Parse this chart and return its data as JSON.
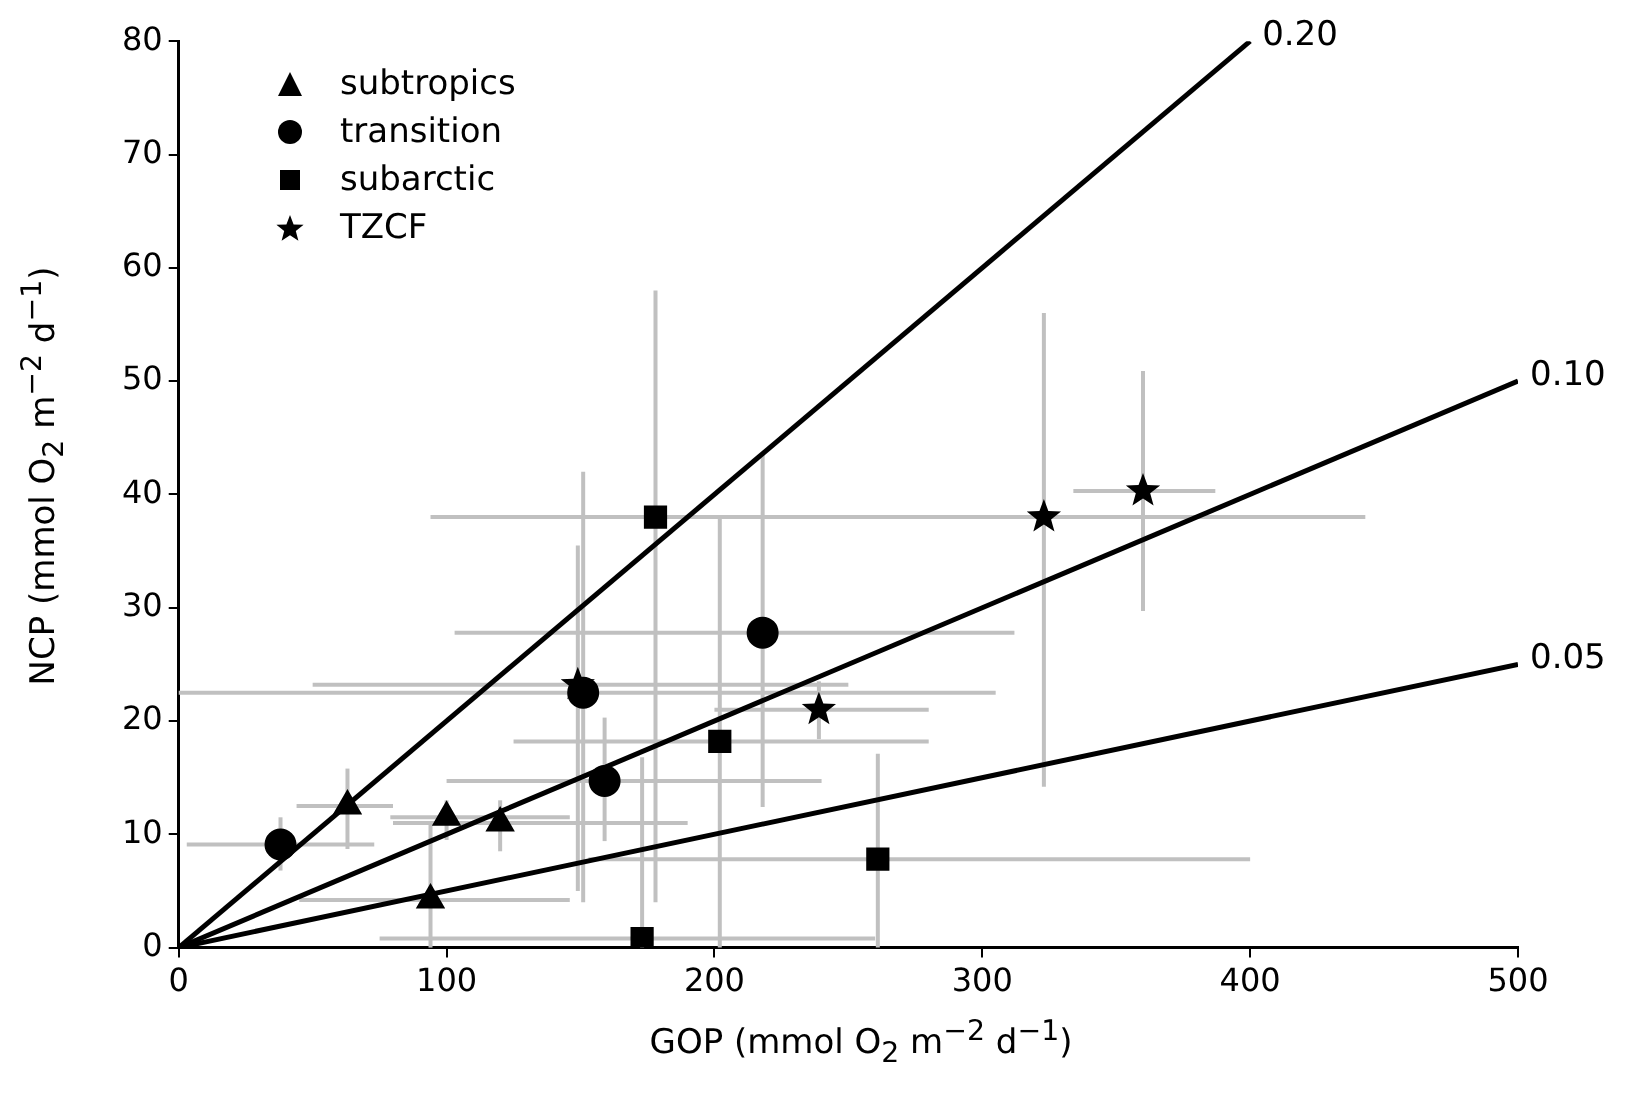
{
  "chart_data": {
    "type": "scatter",
    "xlabel": "GOP (mmol O$_{2}$ m$^{−2}$ d$^{−1}$)",
    "ylabel": "NCP (mmol O$_{2}$ m$^{−2}$ d$^{−1}$)",
    "xlim": [
      0,
      500
    ],
    "ylim": [
      0,
      80
    ],
    "xticks": [
      0,
      100,
      200,
      300,
      400,
      500
    ],
    "yticks": [
      0,
      10,
      20,
      30,
      40,
      50,
      60,
      70,
      80
    ],
    "grid": false,
    "legend": "top left",
    "series": [
      {
        "name": "subtropics",
        "color": "#000000",
        "marker": "triangle",
        "x": [
          63,
          100,
          120,
          94
        ],
        "values": [
          12.5,
          11.5,
          11,
          4.2
        ],
        "errors": [
          [
            8.7,
            15.8
          ],
          [
            9.5,
            13
          ],
          [
            8.5,
            13
          ],
          [
            0,
            11
          ]
        ],
        "xerrors": [
          [
            44,
            80
          ],
          [
            79,
            146
          ],
          [
            80,
            190
          ],
          [
            45,
            146
          ]
        ]
      },
      {
        "name": "transition",
        "color": "#000000",
        "marker": "circle",
        "x": [
          38,
          151,
          159,
          218
        ],
        "values": [
          9.1,
          22.5,
          14.7,
          27.8
        ],
        "errors": [
          [
            6.8,
            11.5
          ],
          [
            4,
            42
          ],
          [
            9.4,
            20.3
          ],
          [
            12.4,
            43.5
          ]
        ],
        "xerrors": [
          [
            3,
            73
          ],
          [
            0,
            305
          ],
          [
            100,
            240
          ],
          [
            103,
            312
          ]
        ]
      },
      {
        "name": "subarctic",
        "color": "#000000",
        "marker": "square",
        "x": [
          178,
          202,
          173,
          261
        ],
        "values": [
          38,
          18.2,
          0.8,
          7.8
        ],
        "errors": [
          [
            4,
            58
          ],
          [
            0,
            38
          ],
          [
            0,
            16.8
          ],
          [
            0,
            17.1
          ]
        ],
        "xerrors": [
          [
            94,
            295
          ],
          [
            125,
            280
          ],
          [
            75,
            260
          ],
          [
            153,
            400
          ]
        ]
      },
      {
        "name": "TZCF",
        "color": "#000000",
        "marker": "star",
        "x": [
          149,
          239,
          323,
          360
        ],
        "values": [
          23.2,
          21,
          38,
          40.3
        ],
        "errors": [
          [
            5,
            35.5
          ],
          [
            18.4,
            23.5
          ],
          [
            14.2,
            56
          ],
          [
            29.7,
            50.9
          ]
        ],
        "xerrors": [
          [
            50,
            250
          ],
          [
            200,
            280
          ],
          [
            203,
            443
          ],
          [
            334,
            387
          ]
        ]
      },
      {
        "name": "0.20",
        "type": "line",
        "color": "#000000",
        "marker": "none",
        "x": [
          0,
          400
        ],
        "values": [
          0,
          80
        ]
      },
      {
        "name": "0.10",
        "type": "line",
        "color": "#000000",
        "marker": "none",
        "x": [
          0,
          500
        ],
        "values": [
          0,
          50
        ]
      },
      {
        "name": "0.05",
        "type": "line",
        "color": "#000000",
        "marker": "none",
        "x": [
          0,
          500
        ],
        "values": [
          0,
          25
        ]
      }
    ]
  }
}
